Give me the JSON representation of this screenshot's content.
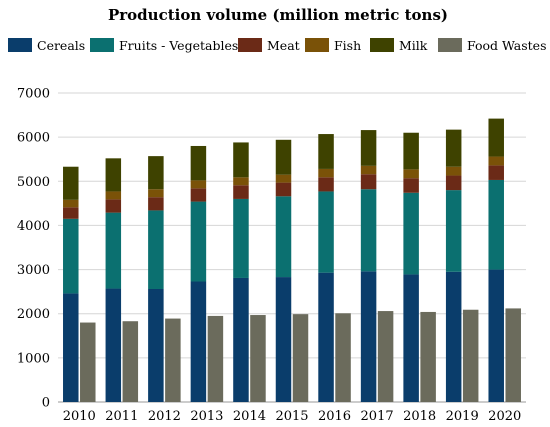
{
  "chart_data": {
    "type": "bar",
    "title": "Production volume (million metric tons)",
    "xlabel": "",
    "ylabel": "",
    "ylim": [
      0,
      7000
    ],
    "yticks": [
      0,
      1000,
      2000,
      3000,
      4000,
      5000,
      6000,
      7000
    ],
    "grid": true,
    "legend": "top",
    "categories": [
      "2010",
      "2011",
      "2012",
      "2013",
      "2014",
      "2015",
      "2016",
      "2017",
      "2018",
      "2019",
      "2020"
    ],
    "stacked_series": [
      {
        "name": "Cereals",
        "color": "#0a3d6b",
        "values": [
          2460,
          2570,
          2560,
          2730,
          2810,
          2830,
          2930,
          2960,
          2890,
          2950,
          3000
        ]
      },
      {
        "name": "Fruits - Vegetables",
        "color": "#0b7070",
        "values": [
          1690,
          1720,
          1780,
          1810,
          1790,
          1830,
          1840,
          1860,
          1850,
          1850,
          2030
        ]
      },
      {
        "name": "Meat",
        "color": "#6b2a17",
        "values": [
          260,
          300,
          300,
          300,
          310,
          310,
          320,
          340,
          330,
          330,
          330
        ]
      },
      {
        "name": "Fish",
        "color": "#7a5208",
        "values": [
          170,
          180,
          180,
          180,
          180,
          180,
          190,
          190,
          200,
          200,
          200
        ]
      },
      {
        "name": "Milk",
        "color": "#3e4200",
        "values": [
          750,
          750,
          750,
          780,
          790,
          790,
          790,
          810,
          830,
          840,
          860
        ]
      }
    ],
    "side_series": {
      "name": "Food Wastes",
      "color": "#6b6b5c",
      "values": [
        1800,
        1830,
        1890,
        1950,
        1970,
        1990,
        2010,
        2060,
        2040,
        2090,
        2120
      ]
    }
  }
}
